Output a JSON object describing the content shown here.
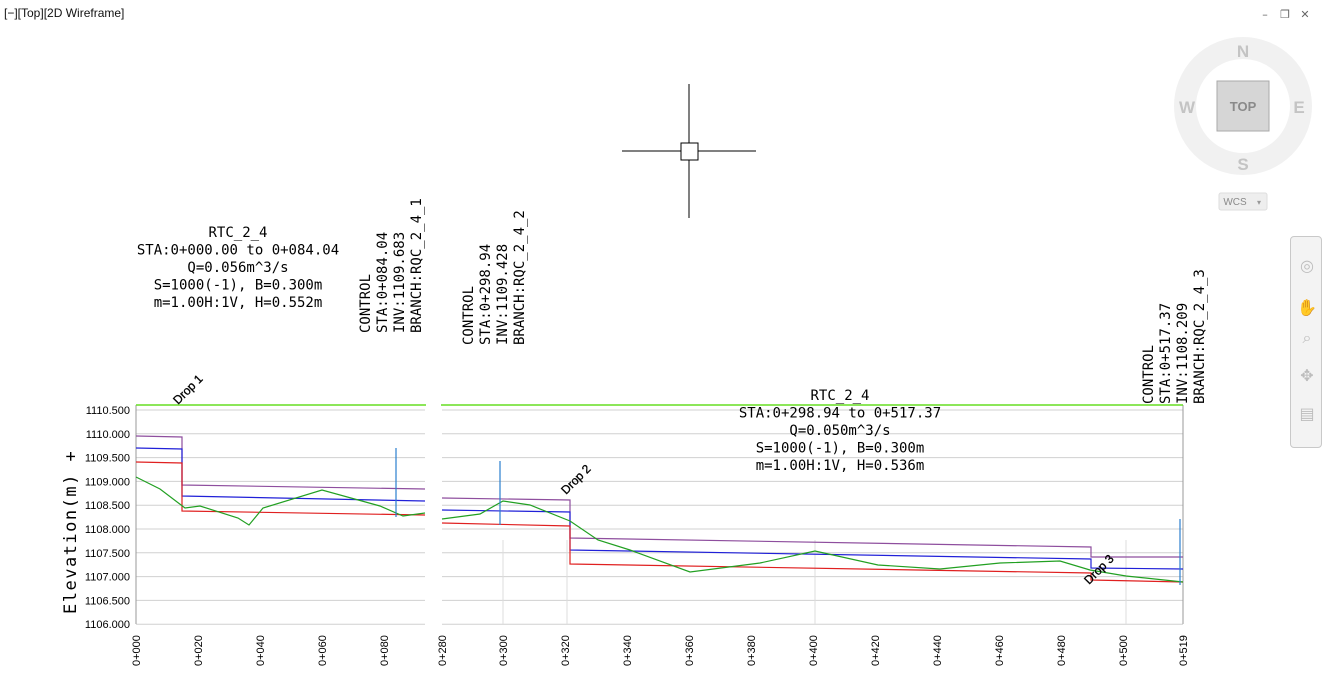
{
  "viewport": {
    "label": "[−][Top][2D Wireframe]"
  },
  "window_controls": {
    "minimize": "–",
    "restore": "❐",
    "close": "✕"
  },
  "viewcube": {
    "north": "N",
    "south": "S",
    "east": "E",
    "west": "W",
    "face": "TOP",
    "ucs": "WCS"
  },
  "navbar": {
    "icons": [
      "steering-wheel-icon",
      "pan-icon",
      "zoom-icon",
      "orbit-icon",
      "showmotion-icon"
    ]
  },
  "colors": {
    "ground": "#22a022",
    "invert": "#e02020",
    "crown": "#2020d8",
    "top_of_bank": "#8e4e9e",
    "control_tick": "#2a7fcf",
    "green_line": "#66dd22"
  },
  "profile": {
    "y_axis_label": "Elevation(m) +",
    "y_ticks": [
      "1110.500",
      "1110.000",
      "1109.500",
      "1109.000",
      "1108.500",
      "1108.000",
      "1107.500",
      "1107.000",
      "1106.500",
      "1106.000"
    ],
    "left_panel_x_ticks": [
      "0+000",
      "0+020",
      "0+040",
      "0+060",
      "0+080"
    ],
    "right_panel_x_ticks": [
      "0+300",
      "0+320",
      "0+340",
      "0+360",
      "0+380",
      "0+400",
      "0+420",
      "0+440",
      "0+460",
      "0+480",
      "0+500",
      "0+519"
    ],
    "right_panel_cut_label": "0+280",
    "drops": [
      "Drop 1",
      "Drop 2",
      "Drop 3"
    ],
    "reach_1": {
      "lines": [
        "RTC_2_4",
        "STA:0+000.00  to  0+084.04",
        "Q=0.056m^3/s",
        "S=1000(-1), B=0.300m",
        "m=1.00H:1V, H=0.552m"
      ]
    },
    "reach_2": {
      "lines": [
        "RTC_2_4",
        "STA:0+298.94  to  0+517.37",
        "Q=0.050m^3/s",
        "S=1000(-1), B=0.300m",
        "m=1.00H:1V, H=0.536m"
      ]
    },
    "controls": [
      {
        "lines": [
          "CONTROL",
          "STA:0+084.04",
          "INV:1109.683",
          "BRANCH:RQC_2_4_1"
        ]
      },
      {
        "lines": [
          "CONTROL",
          "STA:0+298.94",
          "INV:1109.428",
          "BRANCH:RQC_2_4_2"
        ]
      },
      {
        "lines": [
          "CONTROL",
          "STA:0+517.37",
          "INV:1108.209",
          "BRANCH:RQC_2_4_3"
        ]
      }
    ]
  }
}
